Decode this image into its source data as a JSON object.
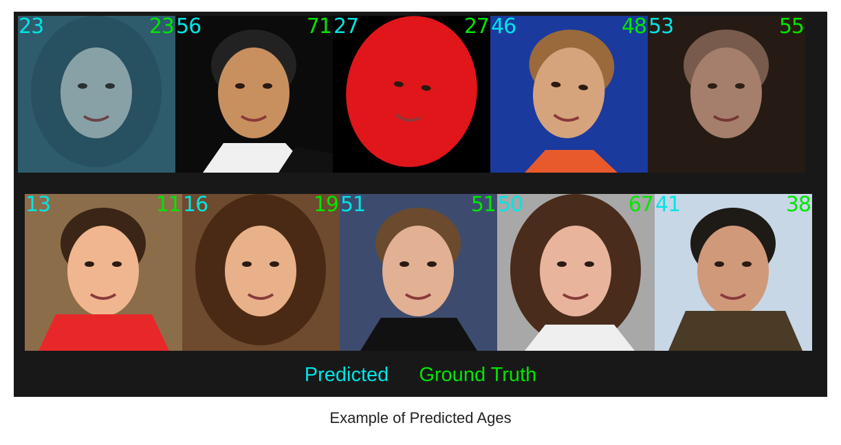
{
  "colors": {
    "predicted": "#00e5e5",
    "ground_truth": "#00e600",
    "panel_bg": "#181818"
  },
  "rows": [
    {
      "tiles": [
        {
          "predicted": "23",
          "ground_truth": "23",
          "tones": [
            "#2f5d6e",
            "#b9c6c7",
            "#e4e7e2"
          ],
          "style": "vintage-portrait"
        },
        {
          "predicted": "56",
          "ground_truth": "71",
          "tones": [
            "#0b0b0b",
            "#c8905e",
            "#f0f0f0"
          ],
          "style": "smiling-man"
        },
        {
          "predicted": "27",
          "ground_truth": "27",
          "tones": [
            "#000000",
            "#e0161a",
            "#f0c8d4"
          ],
          "style": "red-hair"
        },
        {
          "predicted": "46",
          "ground_truth": "48",
          "tones": [
            "#1a3a9e",
            "#d6a47c",
            "#e85a2c"
          ],
          "style": "woman-blue-bg"
        },
        {
          "predicted": "53",
          "ground_truth": "55",
          "tones": [
            "#1e1611",
            "#c89a86",
            "#8c6b5c"
          ],
          "style": "blurry-woman"
        }
      ]
    },
    {
      "tiles": [
        {
          "predicted": "13",
          "ground_truth": "11",
          "tones": [
            "#8c6d4a",
            "#f0b690",
            "#e82828"
          ],
          "style": "boy-red-shirt"
        },
        {
          "predicted": "16",
          "ground_truth": "19",
          "tones": [
            "#6e4a2e",
            "#e8b18a",
            "#3a2316"
          ],
          "style": "curly-girl"
        },
        {
          "predicted": "51",
          "ground_truth": "51",
          "tones": [
            "#3d4c6e",
            "#e2b093",
            "#111111"
          ],
          "style": "woman-black-top"
        },
        {
          "predicted": "50",
          "ground_truth": "67",
          "tones": [
            "#a8a8a8",
            "#e8b59c",
            "#4a2c1c"
          ],
          "style": "glam-woman"
        },
        {
          "predicted": "41",
          "ground_truth": "38",
          "tones": [
            "#c7d7e6",
            "#d0997a",
            "#4a3a26"
          ],
          "style": "man-jacket"
        }
      ]
    }
  ],
  "legend": {
    "predicted_label": "Predicted",
    "ground_truth_label": "Ground Truth"
  },
  "caption": "Example of Predicted Ages"
}
